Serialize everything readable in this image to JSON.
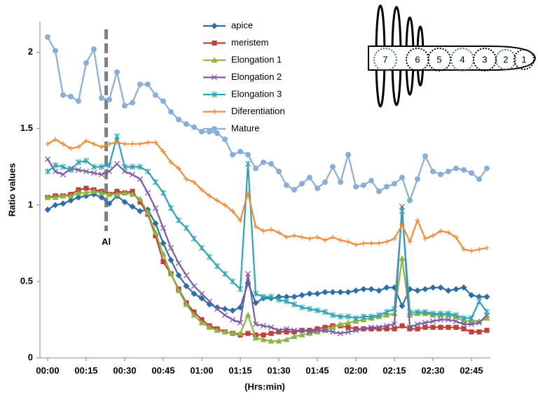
{
  "chart_data": {
    "type": "line",
    "y_label": "Ratio values",
    "x_label": "(Hrs:min)",
    "categories": [
      "00:00",
      null,
      null,
      null,
      null,
      "00:15",
      null,
      null,
      null,
      null,
      "00:30",
      null,
      null,
      null,
      null,
      "00:45",
      null,
      null,
      null,
      null,
      "01:00",
      null,
      null,
      null,
      null,
      "01:15",
      null,
      null,
      null,
      null,
      "01:30",
      null,
      null,
      null,
      null,
      "01:45",
      null,
      null,
      null,
      null,
      "02:00",
      null,
      null,
      null,
      null,
      "02:15",
      null,
      null,
      null,
      null,
      "02:30",
      null,
      null,
      null,
      null,
      "02:45",
      null,
      null
    ],
    "ylim": [
      0,
      2.2
    ],
    "yticks": [
      0,
      0.5,
      1,
      1.5,
      2
    ],
    "grid": false,
    "annotation": {
      "text": "Al",
      "at": 7.6
    },
    "series": [
      {
        "name": "apice",
        "color": "#2e6ea6",
        "marker": "diamond",
        "values": [
          0.97,
          1.0,
          1.01,
          1.03,
          1.05,
          1.06,
          1.07,
          1.05,
          1.01,
          1.06,
          1.02,
          0.99,
          0.96,
          0.97,
          0.88,
          0.75,
          0.64,
          0.54,
          0.47,
          0.42,
          0.39,
          0.35,
          0.33,
          0.32,
          0.31,
          0.33,
          0.49,
          0.36,
          0.39,
          0.39,
          0.4,
          0.4,
          0.4,
          0.41,
          0.42,
          0.42,
          0.43,
          0.43,
          0.43,
          0.43,
          0.44,
          0.45,
          0.45,
          0.44,
          0.46,
          0.46,
          0.34,
          0.45,
          0.44,
          0.45,
          0.46,
          0.46,
          0.44,
          0.45,
          0.46,
          0.41,
          0.4,
          0.4
        ]
      },
      {
        "name": "meristem",
        "color": "#c0403a",
        "marker": "square",
        "values": [
          1.05,
          1.06,
          1.06,
          1.07,
          1.1,
          1.11,
          1.1,
          1.09,
          1.07,
          1.09,
          1.08,
          1.09,
          1.02,
          0.94,
          0.8,
          0.63,
          0.55,
          0.45,
          0.36,
          0.3,
          0.25,
          0.21,
          0.19,
          0.17,
          0.16,
          0.15,
          0.16,
          0.15,
          0.15,
          0.16,
          0.17,
          0.17,
          0.17,
          0.18,
          0.18,
          0.19,
          0.2,
          0.21,
          0.21,
          0.2,
          0.19,
          0.19,
          0.19,
          0.19,
          0.19,
          0.19,
          0.21,
          0.19,
          0.19,
          0.2,
          0.2,
          0.2,
          0.2,
          0.2,
          0.19,
          0.17,
          0.17,
          0.18
        ]
      },
      {
        "name": "Elongation 1",
        "color": "#8db543",
        "marker": "triangle",
        "values": [
          1.05,
          1.05,
          1.06,
          1.06,
          1.08,
          1.08,
          1.09,
          1.08,
          1.07,
          1.07,
          1.08,
          1.07,
          1.04,
          0.95,
          0.82,
          0.68,
          0.55,
          0.44,
          0.35,
          0.28,
          0.23,
          0.2,
          0.18,
          0.17,
          0.16,
          0.16,
          0.28,
          0.13,
          0.12,
          0.11,
          0.11,
          0.12,
          0.14,
          0.15,
          0.16,
          0.17,
          0.18,
          0.2,
          0.22,
          0.23,
          0.24,
          0.25,
          0.26,
          0.27,
          0.28,
          0.29,
          0.65,
          0.28,
          0.29,
          0.29,
          0.28,
          0.28,
          0.28,
          0.27,
          0.24,
          0.24,
          0.24,
          0.26
        ]
      },
      {
        "name": "Elongation 2",
        "color": "#7d5ba6",
        "marker": "x",
        "values": [
          1.3,
          1.22,
          1.2,
          1.24,
          1.23,
          1.22,
          1.21,
          1.2,
          1.22,
          1.27,
          1.22,
          1.2,
          1.17,
          1.08,
          0.98,
          0.85,
          0.72,
          0.62,
          0.54,
          0.47,
          0.42,
          0.37,
          0.32,
          0.28,
          0.25,
          0.23,
          0.55,
          0.22,
          0.21,
          0.2,
          0.18,
          0.19,
          0.18,
          0.18,
          0.17,
          0.18,
          0.18,
          0.17,
          0.16,
          0.17,
          0.18,
          0.19,
          0.2,
          0.2,
          0.21,
          0.22,
          0.99,
          0.2,
          0.22,
          0.23,
          0.24,
          0.25,
          0.25,
          0.24,
          0.22,
          0.22,
          0.23,
          0.28
        ]
      },
      {
        "name": "Elongation 3",
        "color": "#2ba5b5",
        "marker": "star",
        "values": [
          1.22,
          1.26,
          1.25,
          1.23,
          1.28,
          1.29,
          1.25,
          1.25,
          1.26,
          1.45,
          1.25,
          1.25,
          1.25,
          1.22,
          1.15,
          1.08,
          0.98,
          0.9,
          0.85,
          0.78,
          0.72,
          0.66,
          0.6,
          0.55,
          0.5,
          0.45,
          1.27,
          0.42,
          0.4,
          0.4,
          0.38,
          0.37,
          0.35,
          0.33,
          0.32,
          0.31,
          0.3,
          0.28,
          0.27,
          0.27,
          0.26,
          0.27,
          0.27,
          0.28,
          0.3,
          0.32,
          0.96,
          0.3,
          0.3,
          0.3,
          0.29,
          0.29,
          0.29,
          0.28,
          0.26,
          0.26,
          0.37,
          0.3
        ]
      },
      {
        "name": "Diferentiation",
        "color": "#f38a35",
        "marker": "plus",
        "values": [
          1.4,
          1.43,
          1.4,
          1.37,
          1.38,
          1.42,
          1.4,
          1.38,
          1.4,
          1.41,
          1.4,
          1.4,
          1.4,
          1.41,
          1.41,
          1.35,
          1.28,
          1.24,
          1.17,
          1.15,
          1.1,
          1.06,
          1.03,
          1.0,
          0.96,
          0.9,
          1.08,
          0.86,
          0.83,
          0.84,
          0.82,
          0.79,
          0.8,
          0.79,
          0.78,
          0.79,
          0.77,
          0.79,
          0.77,
          0.76,
          0.74,
          0.75,
          0.75,
          0.75,
          0.76,
          0.78,
          0.87,
          0.76,
          0.9,
          0.78,
          0.8,
          0.83,
          0.82,
          0.79,
          0.71,
          0.7,
          0.71,
          0.72
        ]
      },
      {
        "name": "Mature",
        "color": "#8aaed6",
        "marker": "circle",
        "values": [
          2.1,
          2.01,
          1.72,
          1.71,
          1.68,
          1.93,
          2.02,
          1.7,
          1.69,
          1.87,
          1.65,
          1.67,
          1.79,
          1.79,
          1.72,
          1.68,
          1.61,
          1.56,
          1.53,
          1.51,
          1.48,
          1.48,
          1.47,
          1.43,
          1.33,
          1.35,
          1.33,
          1.24,
          1.28,
          1.27,
          1.22,
          1.13,
          1.1,
          1.14,
          1.18,
          1.11,
          1.15,
          1.25,
          1.15,
          1.33,
          1.12,
          1.13,
          1.16,
          1.09,
          1.12,
          1.14,
          1.18,
          1.03,
          1.17,
          1.32,
          1.22,
          1.2,
          1.22,
          1.24,
          1.23,
          1.21,
          1.17,
          1.24
        ]
      }
    ],
    "inset_labels": [
      "7",
      "6",
      "5",
      "4",
      "3",
      "2",
      "1"
    ]
  }
}
